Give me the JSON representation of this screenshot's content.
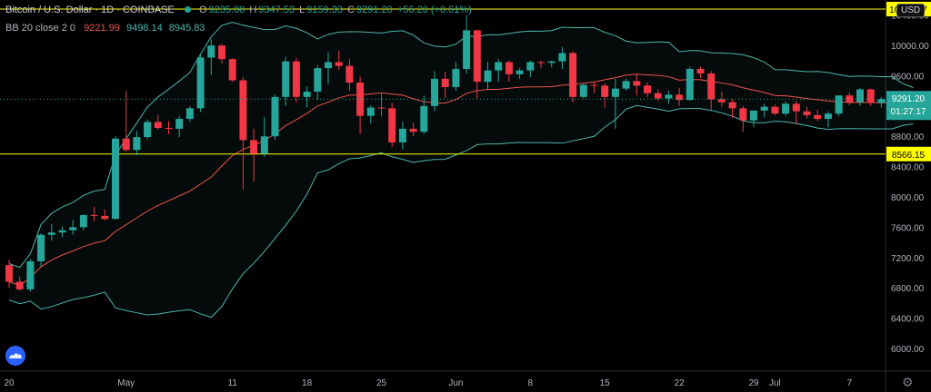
{
  "header": {
    "symbol": "Bitcoin / U.S. Dollar · 1D · COINBASE",
    "o_label": "O",
    "o_value": "9235.00",
    "h_label": "H",
    "h_value": "9347.53",
    "l_label": "L",
    "l_value": "9159.33",
    "c_label": "C",
    "c_value": "9291.20",
    "change": "+56.20 (+0.61%)"
  },
  "indicator": {
    "name": "BB 20 close 2 0",
    "basis": "9221.99",
    "upper": "9498.14",
    "lower": "8945.83"
  },
  "currency_button": "USD",
  "icons": [
    "tradingview-logo-icon",
    "gear-icon"
  ],
  "colors": {
    "up": "#26a69a",
    "down": "#f23645",
    "band": "#4db6ac",
    "basis": "#ef5350",
    "hline": "#ffff00"
  },
  "chart_data": {
    "type": "candlestick",
    "ylim": [
      5700,
      10600
    ],
    "y_ticks": [
      6000,
      6400,
      6800,
      7200,
      7600,
      8000,
      8400,
      8800,
      9200,
      9600,
      10000,
      10400
    ],
    "y_tick_labels": [
      "6000.00",
      "6400.00",
      "6800.00",
      "7200.00",
      "7600.00",
      "8000.00",
      "8400.00",
      "8800.00",
      "9200.00",
      "9600.00",
      "10000.00",
      "10400.00"
    ],
    "x_labels": [
      {
        "i": 0,
        "label": "20"
      },
      {
        "i": 11,
        "label": "May"
      },
      {
        "i": 21,
        "label": "11"
      },
      {
        "i": 28,
        "label": "18"
      },
      {
        "i": 35,
        "label": "25"
      },
      {
        "i": 42,
        "label": "Jun"
      },
      {
        "i": 49,
        "label": "8"
      },
      {
        "i": 56,
        "label": "15"
      },
      {
        "i": 63,
        "label": "22"
      },
      {
        "i": 70,
        "label": "29"
      },
      {
        "i": 72,
        "label": "Jul"
      },
      {
        "i": 79,
        "label": "7"
      }
    ],
    "horizontal_lines": [
      {
        "value": 10480.47,
        "label": "10480.47"
      },
      {
        "value": 8566.15,
        "label": "8566.15"
      }
    ],
    "last_price": {
      "value": 9291.2,
      "label": "9291.20",
      "countdown": "01:27:17"
    },
    "candles": [
      [
        7100,
        7170,
        6800,
        6880
      ],
      [
        6880,
        6950,
        6760,
        6780
      ],
      [
        6780,
        7180,
        6750,
        7150
      ],
      [
        7150,
        7520,
        7080,
        7500
      ],
      [
        7500,
        7640,
        7420,
        7530
      ],
      [
        7530,
        7610,
        7470,
        7560
      ],
      [
        7560,
        7700,
        7500,
        7600
      ],
      [
        7600,
        7770,
        7560,
        7760
      ],
      [
        7760,
        7870,
        7680,
        7750
      ],
      [
        7750,
        7830,
        7690,
        7710
      ],
      [
        7710,
        8800,
        7700,
        8770
      ],
      [
        8770,
        9400,
        8600,
        8620
      ],
      [
        8620,
        8870,
        8550,
        8790
      ],
      [
        8790,
        9020,
        8760,
        8990
      ],
      [
        8990,
        9080,
        8890,
        8910
      ],
      [
        8910,
        9000,
        8830,
        8900
      ],
      [
        8900,
        9070,
        8790,
        9030
      ],
      [
        9030,
        9200,
        8990,
        9170
      ],
      [
        9170,
        9880,
        9120,
        9840
      ],
      [
        9840,
        10080,
        9610,
        10000
      ],
      [
        10000,
        10020,
        9760,
        9820
      ],
      [
        9820,
        9830,
        9520,
        9540
      ],
      [
        9540,
        9580,
        8100,
        8750
      ],
      [
        8750,
        8900,
        8200,
        8570
      ],
      [
        8570,
        9050,
        8530,
        8800
      ],
      [
        8800,
        9350,
        8750,
        9320
      ],
      [
        9320,
        9850,
        9200,
        9790
      ],
      [
        9790,
        9840,
        9250,
        9320
      ],
      [
        9320,
        9460,
        9180,
        9390
      ],
      [
        9390,
        9740,
        9280,
        9700
      ],
      [
        9700,
        9910,
        9490,
        9780
      ],
      [
        9780,
        9930,
        9680,
        9730
      ],
      [
        9730,
        9820,
        9400,
        9510
      ],
      [
        9510,
        9590,
        8830,
        9070
      ],
      [
        9070,
        9210,
        8970,
        9180
      ],
      [
        9180,
        9360,
        9060,
        9170
      ],
      [
        9170,
        9240,
        8660,
        8720
      ],
      [
        8720,
        8990,
        8630,
        8900
      ],
      [
        8900,
        8980,
        8800,
        8860
      ],
      [
        8860,
        9340,
        8830,
        9200
      ],
      [
        9200,
        9660,
        9130,
        9560
      ],
      [
        9560,
        9650,
        9310,
        9450
      ],
      [
        9450,
        9780,
        9400,
        9690
      ],
      [
        9690,
        10400,
        9630,
        10200
      ],
      [
        10200,
        10210,
        9300,
        9520
      ],
      [
        9520,
        9780,
        9410,
        9670
      ],
      [
        9670,
        9820,
        9520,
        9780
      ],
      [
        9780,
        9800,
        9520,
        9620
      ],
      [
        9620,
        9700,
        9560,
        9670
      ],
      [
        9670,
        9800,
        9580,
        9780
      ],
      [
        9780,
        9800,
        9700,
        9770
      ],
      [
        9770,
        9800,
        9710,
        9790
      ],
      [
        9790,
        9980,
        9690,
        9900
      ],
      [
        9900,
        9920,
        9250,
        9320
      ],
      [
        9320,
        9500,
        9300,
        9480
      ],
      [
        9480,
        9510,
        9370,
        9470
      ],
      [
        9470,
        9500,
        9180,
        9320
      ],
      [
        9320,
        9560,
        8900,
        9430
      ],
      [
        9430,
        9560,
        9400,
        9530
      ],
      [
        9530,
        9630,
        9340,
        9470
      ],
      [
        9470,
        9510,
        9320,
        9370
      ],
      [
        9370,
        9420,
        9270,
        9300
      ],
      [
        9300,
        9400,
        9230,
        9350
      ],
      [
        9350,
        9440,
        9200,
        9280
      ],
      [
        9280,
        9720,
        9270,
        9690
      ],
      [
        9690,
        9720,
        9570,
        9630
      ],
      [
        9630,
        9660,
        9150,
        9290
      ],
      [
        9290,
        9390,
        9190,
        9250
      ],
      [
        9250,
        9290,
        9040,
        9170
      ],
      [
        9170,
        9200,
        8860,
        9010
      ],
      [
        9010,
        9140,
        8920,
        9140
      ],
      [
        9140,
        9230,
        9050,
        9190
      ],
      [
        9190,
        9220,
        9080,
        9100
      ],
      [
        9100,
        9260,
        9070,
        9230
      ],
      [
        9230,
        9270,
        8960,
        9130
      ],
      [
        9130,
        9190,
        9040,
        9080
      ],
      [
        9080,
        9150,
        9000,
        9030
      ],
      [
        9030,
        9130,
        8920,
        9100
      ],
      [
        9100,
        9340,
        9070,
        9340
      ],
      [
        9340,
        9380,
        9210,
        9250
      ],
      [
        9250,
        9440,
        9200,
        9420
      ],
      [
        9420,
        9430,
        9200,
        9240
      ],
      [
        9240,
        9320,
        9180,
        9290
      ],
      [
        9290,
        9350,
        9160,
        9270
      ],
      [
        9270,
        9360,
        9150,
        9260
      ],
      [
        9235.0,
        9347.53,
        9159.33,
        9291.2
      ]
    ]
  }
}
